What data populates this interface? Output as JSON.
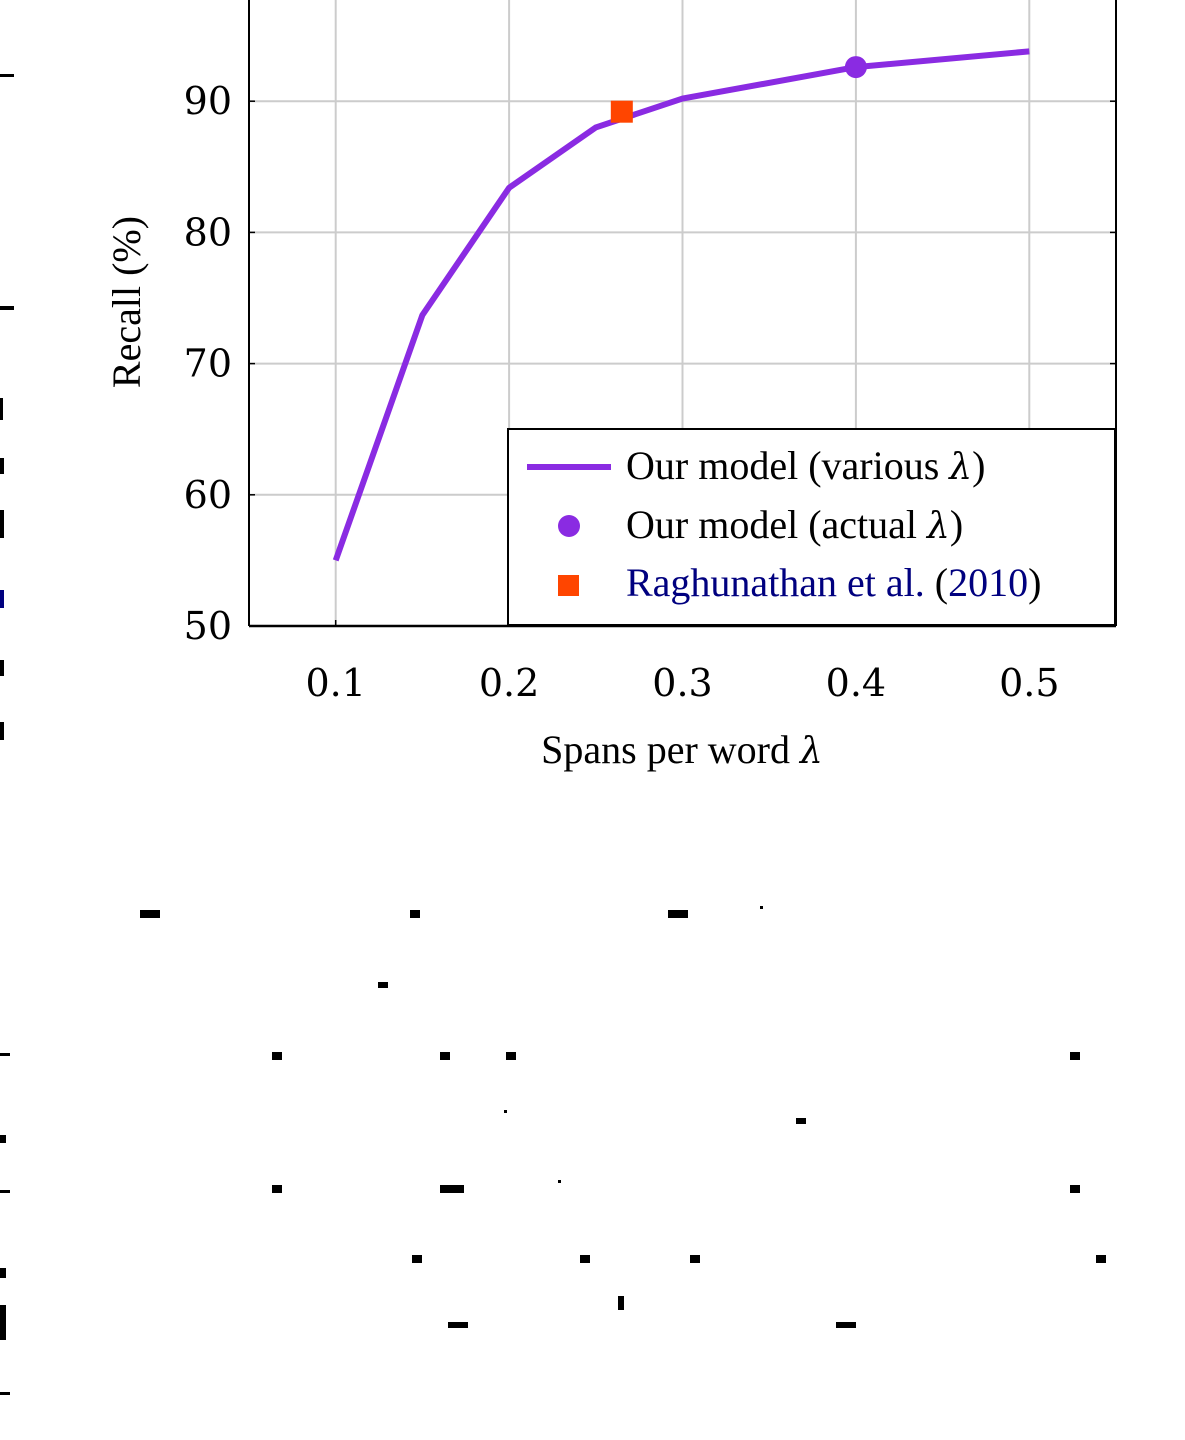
{
  "colors": {
    "series_line": "#8a2be2",
    "series_point": "#8a2be2",
    "reference_point": "#ff4500",
    "citation_link": "#00007f",
    "grid": "#cccccc",
    "axis": "#000000"
  },
  "chart_data": {
    "type": "line",
    "xlabel": "Spans per word",
    "xlabel_symbol": "λ",
    "ylabel": "Recall (%)",
    "xlim": [
      0.05,
      0.55
    ],
    "ylim": [
      50,
      100
    ],
    "x_ticks": [
      "0.1",
      "0.2",
      "0.3",
      "0.4",
      "0.5"
    ],
    "y_ticks": [
      "50",
      "60",
      "70",
      "80",
      "90"
    ],
    "grid": true,
    "legend_position": "bottom-right",
    "series": [
      {
        "name": "Our model (various λ)",
        "kind": "line",
        "x": [
          0.1,
          0.15,
          0.2,
          0.25,
          0.3,
          0.4,
          0.5
        ],
        "y": [
          55.0,
          73.7,
          83.4,
          88.0,
          90.2,
          92.6,
          93.8
        ]
      },
      {
        "name": "Our model (actual λ)",
        "kind": "point",
        "x": [
          0.4
        ],
        "y": [
          92.6
        ]
      },
      {
        "name": "Raghunathan et al. (2010)",
        "kind": "point",
        "x": [
          0.265
        ],
        "y": [
          89.2
        ]
      }
    ],
    "legend": [
      {
        "text": "Our model (various ",
        "symbol": "λ",
        "close": ")"
      },
      {
        "text": "Our model (actual ",
        "symbol": "λ",
        "close": ")"
      },
      {
        "text_link": "Raghunathan et al.",
        "text_mid": " (",
        "year_link": "2010",
        "close": ")"
      }
    ]
  }
}
